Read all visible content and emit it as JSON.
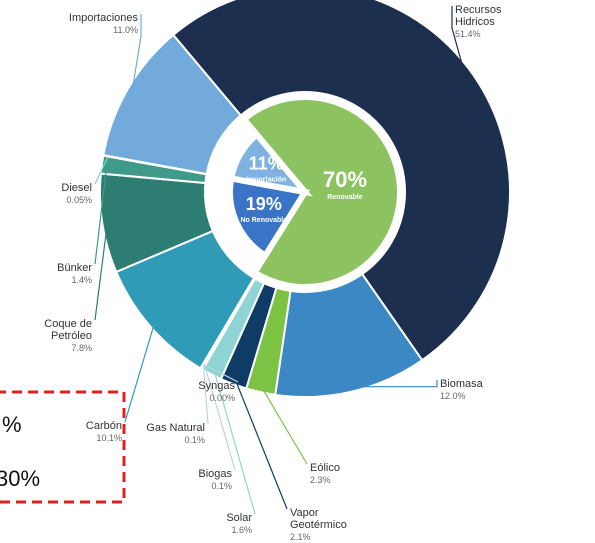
{
  "chart_data": {
    "type": "donut",
    "outer": {
      "categories": [
        "Recursos Hidricos",
        "Biomasa",
        "Eólico",
        "Vapor Geotérmico",
        "Solar",
        "Biogas",
        "Gas Natural",
        "Syngas",
        "Carbón",
        "Coque de Petróleo",
        "Bünker",
        "Diesel",
        "Importaciones"
      ],
      "values": [
        51.4,
        12.0,
        2.3,
        2.1,
        1.6,
        0.1,
        0.1,
        0.0,
        10.1,
        7.8,
        1.4,
        0.05,
        11.0
      ],
      "value_labels": [
        "51.4%",
        "12.0%",
        "2.3%",
        "2.1%",
        "1.6%",
        "0.1%",
        "0.1%",
        "0.00%",
        "10.1%",
        "7.8%",
        "1.4%",
        "0.05%",
        "11.0%"
      ],
      "colors": [
        "#1c2f4f",
        "#3b88c4",
        "#7cc243",
        "#0e3c66",
        "#8fd4d4",
        "#b9d7d6",
        "#b9d7d6",
        "#b9d7d6",
        "#2f9bb7",
        "#2d7d72",
        "#3f9a8a",
        "#7fd1cc",
        "#72aadc"
      ]
    },
    "inner": {
      "categories": [
        "Renovable",
        "No Renovable",
        "Importación"
      ],
      "values": [
        70,
        19,
        11
      ],
      "value_labels": [
        "70%",
        "19%",
        "11%"
      ],
      "colors": [
        "#8dc261",
        "#3a74c6",
        "#7fb2e0"
      ]
    },
    "annotations": [
      "%",
      "30%"
    ]
  }
}
